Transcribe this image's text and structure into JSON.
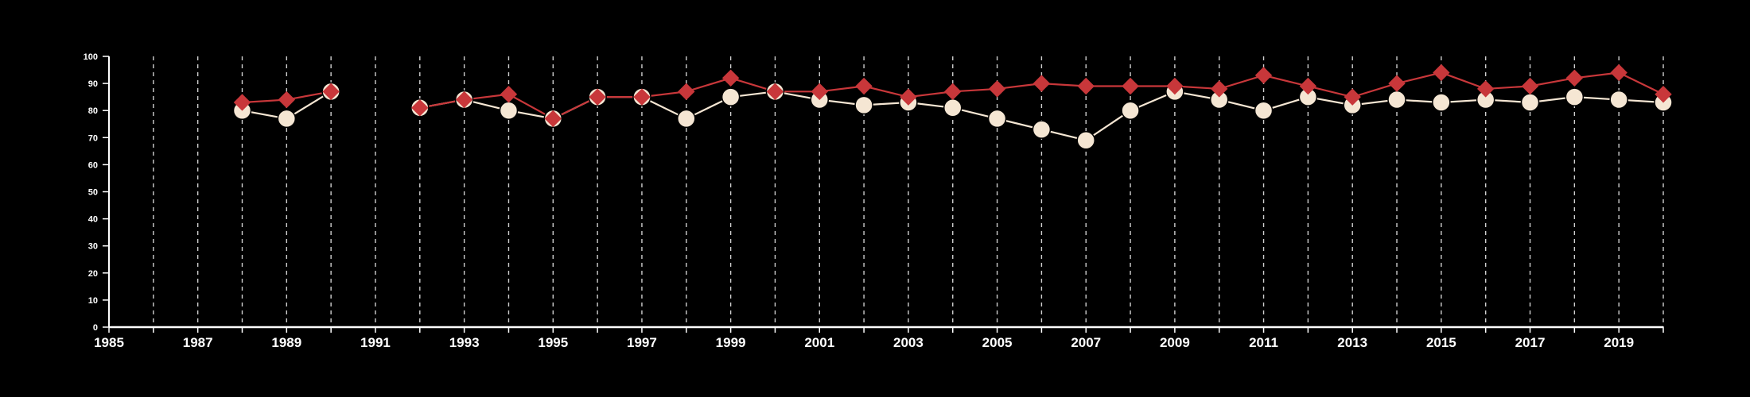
{
  "chart_data": {
    "type": "line",
    "title": "",
    "xlabel": "",
    "ylabel": "",
    "xlim": [
      1985,
      2020
    ],
    "ylim": [
      0,
      100
    ],
    "x_ticks": [
      1985,
      1987,
      1989,
      1991,
      1993,
      1995,
      1997,
      1999,
      2001,
      2003,
      2005,
      2007,
      2009,
      2011,
      2013,
      2015,
      2017,
      2019
    ],
    "y_ticks": [
      0,
      10,
      20,
      30,
      40,
      50,
      60,
      70,
      80,
      90,
      100
    ],
    "grid": "vertical dashed at every year",
    "x": [
      1988,
      1989,
      1990,
      1991,
      1992,
      1993,
      1994,
      1995,
      1996,
      1997,
      1998,
      1999,
      2000,
      2001,
      2002,
      2003,
      2004,
      2005,
      2006,
      2007,
      2008,
      2009,
      2010,
      2011,
      2012,
      2013,
      2014,
      2015,
      2016,
      2017,
      2018,
      2019,
      2020
    ],
    "series": [
      {
        "color": "#c8373a",
        "marker": "diamond",
        "values": [
          83,
          84,
          87,
          null,
          81,
          84,
          86,
          77,
          85,
          85,
          87,
          92,
          87,
          87,
          89,
          85,
          87,
          88,
          90,
          89,
          89,
          89,
          88,
          93,
          89,
          85,
          90,
          94,
          88,
          89,
          92,
          94,
          86
        ]
      },
      {
        "color": "#f5e6d3",
        "marker": "circle",
        "values": [
          80,
          77,
          87,
          null,
          81,
          84,
          80,
          77,
          85,
          85,
          77,
          85,
          87,
          84,
          82,
          83,
          81,
          77,
          73,
          69,
          80,
          87,
          84,
          80,
          85,
          82,
          84,
          83,
          84,
          83,
          85,
          84,
          83
        ]
      }
    ]
  }
}
